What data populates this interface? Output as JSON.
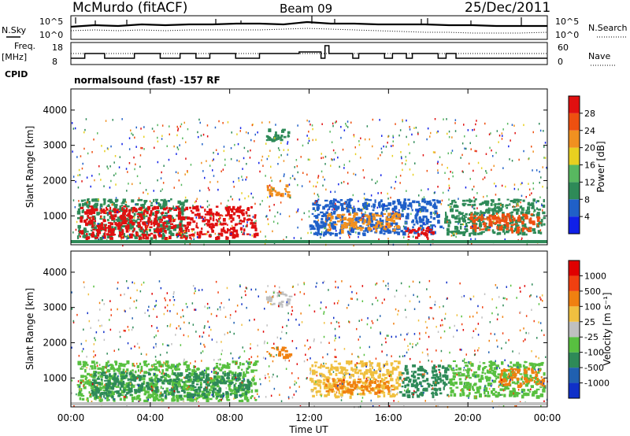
{
  "header": {
    "station": "McMurdo (fitACF)",
    "beam": "Beam 09",
    "date": "25/Dec/2011"
  },
  "noise_panel": {
    "left_label": "N.Sky",
    "right_label": "N.Search",
    "left_ticks": [
      "10^5",
      "10^0"
    ],
    "right_ticks": [
      "10^5",
      "10^0"
    ]
  },
  "freq_panel": {
    "left_label_line1": "Freq.",
    "left_label_line2": "[MHz]",
    "right_label": "Nave",
    "left_ticks": [
      "18",
      "8"
    ],
    "right_ticks": [
      "60",
      "0"
    ],
    "freq_steps": [
      {
        "t": 0.0,
        "f": 10
      },
      {
        "t": 0.7,
        "f": 13
      },
      {
        "t": 1.7,
        "f": 10
      },
      {
        "t": 3.2,
        "f": 13
      },
      {
        "t": 4.5,
        "f": 10
      },
      {
        "t": 5.5,
        "f": 13
      },
      {
        "t": 6.3,
        "f": 10
      },
      {
        "t": 7.0,
        "f": 13
      },
      {
        "t": 8.3,
        "f": 10
      },
      {
        "t": 9.5,
        "f": 13
      },
      {
        "t": 11.5,
        "f": 14
      },
      {
        "t": 12.6,
        "f": 10
      },
      {
        "t": 12.8,
        "f": 18
      },
      {
        "t": 13.0,
        "f": 13
      },
      {
        "t": 14.2,
        "f": 10
      },
      {
        "t": 14.5,
        "f": 13
      },
      {
        "t": 15.8,
        "f": 10
      },
      {
        "t": 16.2,
        "f": 13
      },
      {
        "t": 16.9,
        "f": 10
      },
      {
        "t": 17.2,
        "f": 13
      },
      {
        "t": 18.5,
        "f": 10
      },
      {
        "t": 18.9,
        "f": 13
      },
      {
        "t": 19.4,
        "f": 10
      },
      {
        "t": 24.0,
        "f": 10
      }
    ]
  },
  "cpid": {
    "label": "CPID",
    "value": "normalsound (fast) -157 RF"
  },
  "chart_data": [
    {
      "type": "heatmap",
      "name": "power",
      "ylabel": "Slant Range [km]",
      "yticks": [
        1000,
        2000,
        3000,
        4000
      ],
      "ylim": [
        180,
        4600
      ],
      "xlim": [
        0,
        24
      ],
      "colorbar_label": "Power [dB]",
      "colorbar_ticks": [
        "28",
        "24",
        "20",
        "16",
        "12",
        "8",
        "4"
      ],
      "colorbar_colors": [
        "#1020e8",
        "#2060c8",
        "#2e8a58",
        "#58b860",
        "#e8d020",
        "#f09020",
        "#ee5010",
        "#e01010"
      ],
      "bands": [
        {
          "t0": 0.3,
          "t1": 5.8,
          "r0": 380,
          "r1": 1500,
          "c": "#2e8a58"
        },
        {
          "t0": 0.4,
          "t1": 9.3,
          "r0": 400,
          "r1": 1300,
          "c": "#e01010"
        },
        {
          "t0": 9.8,
          "t1": 11.0,
          "r0": 3100,
          "r1": 3500,
          "c": "#2e8a58"
        },
        {
          "t0": 9.8,
          "t1": 11.0,
          "r0": 1600,
          "r1": 1900,
          "c": "#f09020"
        },
        {
          "t0": 12.0,
          "t1": 18.6,
          "r0": 500,
          "r1": 1500,
          "c": "#2060c8"
        },
        {
          "t0": 12.8,
          "t1": 16.5,
          "r0": 600,
          "r1": 1100,
          "c": "#f09020"
        },
        {
          "t0": 16.8,
          "t1": 18.2,
          "r0": 300,
          "r1": 700,
          "c": "#e01010"
        },
        {
          "t0": 18.8,
          "t1": 23.8,
          "r0": 500,
          "r1": 1500,
          "c": "#2e8a58"
        },
        {
          "t0": 20.0,
          "t1": 23.5,
          "r0": 600,
          "r1": 1100,
          "c": "#ee5010"
        }
      ]
    },
    {
      "type": "heatmap",
      "name": "velocity",
      "ylabel": "Slant Range [km]",
      "yticks": [
        1000,
        2000,
        3000,
        4000
      ],
      "ylim": [
        180,
        4600
      ],
      "xlim": [
        0,
        24
      ],
      "colorbar_label": "Velocity [m s⁻¹]",
      "colorbar_ticks": [
        "1000",
        "500",
        "100",
        "25",
        "-25",
        "-100",
        "-500",
        "-1000"
      ],
      "colorbar_colors": [
        "#1030c8",
        "#2060b0",
        "#2e8a58",
        "#58c040",
        "#c0c0c0",
        "#f0c040",
        "#f08010",
        "#f04010",
        "#e00000"
      ],
      "bands": [
        {
          "t0": 0.3,
          "t1": 9.3,
          "r0": 380,
          "r1": 1500,
          "c": "#58c040"
        },
        {
          "t0": 1.0,
          "t1": 9.0,
          "r0": 500,
          "r1": 1200,
          "c": "#2e8a58"
        },
        {
          "t0": 9.8,
          "t1": 11.0,
          "r0": 3100,
          "r1": 3500,
          "c": "#c0c0c0"
        },
        {
          "t0": 9.8,
          "t1": 11.0,
          "r0": 1600,
          "r1": 1900,
          "c": "#f08010"
        },
        {
          "t0": 12.0,
          "t1": 16.5,
          "r0": 500,
          "r1": 1500,
          "c": "#f0c040"
        },
        {
          "t0": 12.8,
          "t1": 16.2,
          "r0": 600,
          "r1": 1000,
          "c": "#f08010"
        },
        {
          "t0": 16.5,
          "t1": 19.0,
          "r0": 500,
          "r1": 1400,
          "c": "#2e8a58"
        },
        {
          "t0": 19.0,
          "t1": 23.8,
          "r0": 500,
          "r1": 1500,
          "c": "#58c040"
        },
        {
          "t0": 21.5,
          "t1": 23.8,
          "r0": 800,
          "r1": 1300,
          "c": "#f08010"
        }
      ]
    }
  ],
  "x_axis": {
    "ticks": [
      "00:00",
      "04:00",
      "08:00",
      "12:00",
      "16:00",
      "20:00",
      "00:00"
    ],
    "label": "Time UT"
  }
}
